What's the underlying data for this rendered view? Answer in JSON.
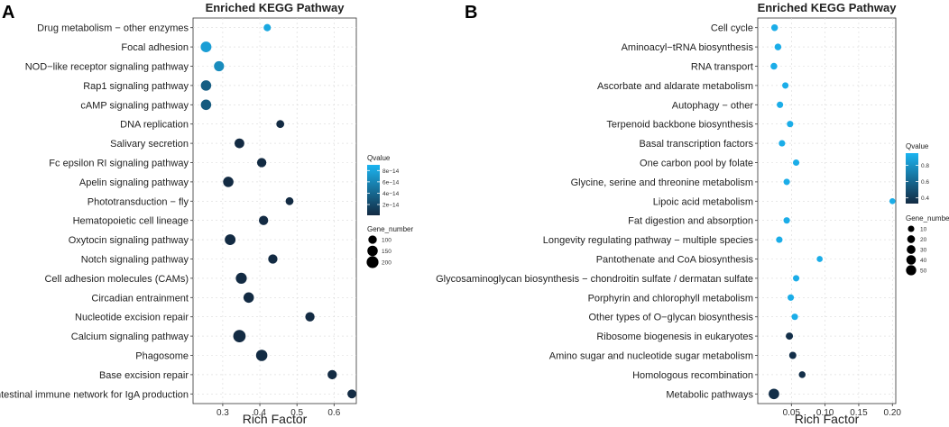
{
  "chart_data": [
    {
      "type": "scatter",
      "panel_label": "A",
      "title": "Enriched KEGG Pathway",
      "xlabel": "Rich Factor",
      "ylabel": "",
      "xlim": [
        0.22,
        0.66
      ],
      "xticks": [
        0.3,
        0.4,
        0.5,
        0.6
      ],
      "xtick_labels": [
        "0.3",
        "0.4",
        "0.5",
        "0.6"
      ],
      "grid": true,
      "categories": [
        "Drug metabolism − other enzymes",
        "Focal adhesion",
        "NOD−like receptor signaling pathway",
        "Rap1 signaling pathway",
        "cAMP signaling pathway",
        "DNA replication",
        "Salivary secretion",
        "Fc epsilon RI signaling pathway",
        "Apelin signaling pathway",
        "Phototransduction − fly",
        "Hematopoietic cell lineage",
        "Oxytocin signaling pathway",
        "Notch signaling pathway",
        "Cell adhesion molecules (CAMs)",
        "Circadian entrainment",
        "Nucleotide excision repair",
        "Calcium signaling pathway",
        "Phagosome",
        "Base excision repair",
        "Intestinal immune network for IgA production"
      ],
      "rich_factor": [
        0.42,
        0.255,
        0.29,
        0.255,
        0.255,
        0.455,
        0.345,
        0.405,
        0.315,
        0.48,
        0.41,
        0.32,
        0.435,
        0.35,
        0.37,
        0.535,
        0.345,
        0.405,
        0.595,
        0.648
      ],
      "qvalue": [
        8.2e-14,
        7.6e-14,
        6.4e-14,
        3.4e-14,
        3.2e-14,
        1e-15,
        1e-15,
        1e-15,
        1e-15,
        1e-15,
        1e-15,
        1e-15,
        1e-15,
        1e-15,
        1e-15,
        1e-15,
        1e-15,
        1e-15,
        1e-15,
        1e-15
      ],
      "gene_number": [
        80,
        160,
        140,
        150,
        150,
        90,
        130,
        120,
        150,
        90,
        120,
        160,
        120,
        170,
        150,
        120,
        220,
        180,
        120,
        110
      ],
      "color_legend": {
        "title": "Qvalue",
        "range": [
          1e-15,
          9e-14
        ],
        "ticks": [
          2e-14,
          4e-14,
          6e-14,
          8e-14
        ],
        "tick_labels": [
          "2e−14",
          "4e−14",
          "6e−14",
          "8e−14"
        ],
        "low_color": "#132b43",
        "high_color": "#1bb4f0"
      },
      "size_legend": {
        "title": "Gene_number",
        "values": [
          100,
          150,
          200
        ],
        "labels": [
          "100",
          "150",
          "200"
        ],
        "range": [
          60,
          230
        ]
      }
    },
    {
      "type": "scatter",
      "panel_label": "B",
      "title": "Enriched KEGG Pathway",
      "xlabel": "Rich Factor",
      "ylabel": "",
      "xlim": [
        0.0,
        0.205
      ],
      "xticks": [
        0.05,
        0.1,
        0.15,
        0.2
      ],
      "xtick_labels": [
        "0.05",
        "0.10",
        "0.15",
        "0.20"
      ],
      "grid": true,
      "categories": [
        "Cell cycle",
        "Aminoacyl−tRNA biosynthesis",
        "RNA transport",
        "Ascorbate and aldarate metabolism",
        "Autophagy − other",
        "Terpenoid backbone biosynthesis",
        "Basal transcription factors",
        "One carbon pool by folate",
        "Glycine, serine and threonine metabolism",
        "Lipoic acid metabolism",
        "Fat digestion and absorption",
        "Longevity regulating pathway − multiple species",
        "Pantothenate and CoA biosynthesis",
        "Glycosaminoglycan biosynthesis − chondroitin sulfate / dermatan sulfate",
        "Porphyrin and chlorophyll metabolism",
        "Other types of O−glycan biosynthesis",
        "Ribosome biogenesis in eukaryotes",
        "Amino sugar and nucleotide sugar metabolism",
        "Homologous recombination",
        "Metabolic pathways"
      ],
      "rich_factor": [
        0.025,
        0.03,
        0.024,
        0.041,
        0.033,
        0.048,
        0.036,
        0.057,
        0.043,
        0.2,
        0.043,
        0.032,
        0.092,
        0.057,
        0.049,
        0.055,
        0.047,
        0.052,
        0.066,
        0.024
      ],
      "qvalue": [
        0.92,
        0.92,
        0.92,
        0.92,
        0.92,
        0.92,
        0.92,
        0.92,
        0.92,
        0.92,
        0.92,
        0.92,
        0.92,
        0.92,
        0.92,
        0.92,
        0.35,
        0.35,
        0.35,
        0.35
      ],
      "gene_number": [
        12,
        12,
        12,
        10,
        10,
        10,
        10,
        10,
        10,
        8,
        10,
        10,
        8,
        10,
        10,
        10,
        15,
        15,
        12,
        55
      ],
      "color_legend": {
        "title": "Qvalue",
        "range": [
          0.33,
          0.95
        ],
        "ticks": [
          0.4,
          0.6,
          0.8
        ],
        "tick_labels": [
          "0.4",
          "0.6",
          "0.8"
        ],
        "low_color": "#132b43",
        "high_color": "#1bb4f0"
      },
      "size_legend": {
        "title": "Gene_number",
        "values": [
          10,
          20,
          30,
          40,
          50
        ],
        "labels": [
          "10",
          "20",
          "30",
          "40",
          "50"
        ],
        "range": [
          5,
          60
        ]
      }
    }
  ]
}
